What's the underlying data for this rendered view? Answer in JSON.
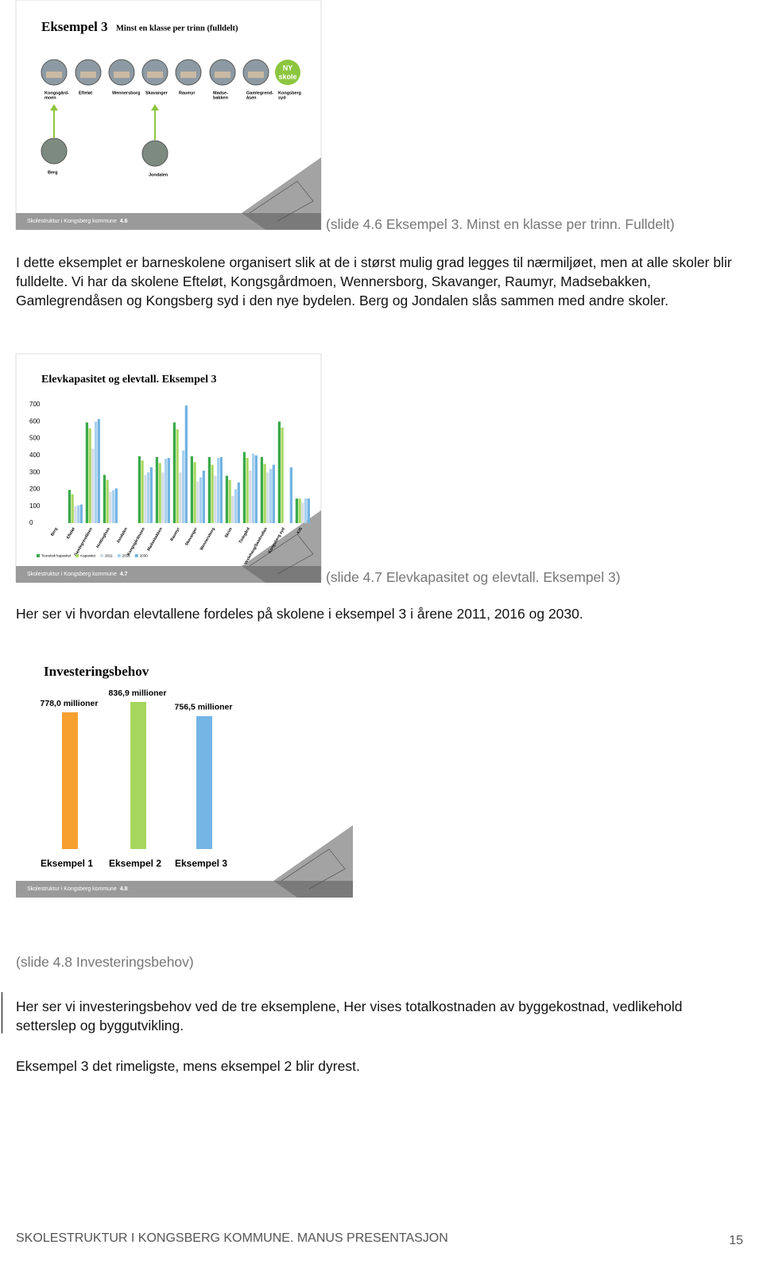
{
  "slides": [
    {
      "title": "Eksempel 3",
      "subtitle": "Minst en klasse per trinn (fulldelt)",
      "schools": [
        [
          "Kongsgård-",
          "moen"
        ],
        [
          "Efteløt"
        ],
        [
          "Wennersborg"
        ],
        [
          "Skavanger"
        ],
        [
          "Raumyr"
        ],
        [
          "Madse-",
          "bakken"
        ],
        [
          "Gamlegrend-",
          "åsen"
        ],
        [
          "Kongsberg",
          "syd"
        ]
      ],
      "new_school": [
        "NY",
        "skole"
      ],
      "merged": [
        "Berg",
        "Jondalen"
      ],
      "footer": "Skolestruktur i Kongsberg kommune",
      "number": "4.6",
      "caption": "(slide 4.6 Eksempel 3. Minst en klasse per trinn. Fulldelt)"
    },
    {
      "chart_data": {
        "type": "bar",
        "title": "Elevkapasitet og elevtall. Eksempel 3",
        "categories": [
          "Berg",
          "Efteløt",
          "Gamlegrendåsen",
          "Hvittingfoss",
          "Jondalen",
          "Kongsgårdmoen",
          "Madsebakken",
          "Raumyr",
          "Skavanger",
          "Wennersborg",
          "Skrim",
          "Tislegård",
          "Veslehaug/Sandvollan",
          "Kongsberg syd",
          "KIS"
        ],
        "series": [
          {
            "name": "Teoretisk kapasitet",
            "color": "#3aaa4a",
            "values": [
              null,
              196,
              595,
              285,
              null,
              395,
              390,
              595,
              395,
              390,
              280,
              420,
              390,
              600,
              145
            ]
          },
          {
            "name": "Kapasitet",
            "color": "#a8d862",
            "values": [
              null,
              170,
              560,
              255,
              null,
              370,
              355,
              555,
              360,
              345,
              255,
              385,
              350,
              565,
              145
            ]
          },
          {
            "name": "2011",
            "color": "#d3dbe3",
            "values": [
              null,
              100,
              440,
              185,
              null,
              285,
              300,
              300,
              245,
              280,
              160,
              310,
              300,
              null,
              120
            ]
          },
          {
            "name": "2016",
            "color": "#a9d1ef",
            "values": [
              null,
              105,
              600,
              195,
              null,
              300,
              380,
              430,
              270,
              385,
              200,
              410,
              320,
              null,
              145
            ]
          },
          {
            "name": "2030",
            "color": "#72b3e2",
            "values": [
              null,
              110,
              615,
              205,
              null,
              330,
              385,
              695,
              310,
              390,
              240,
              400,
              345,
              330,
              145
            ]
          }
        ],
        "ylim": [
          0,
          700
        ],
        "yticks": [
          0,
          100,
          200,
          300,
          400,
          500,
          600,
          700
        ],
        "legend": "bottom"
      },
      "footer": "Skolestruktur i Kongsberg kommune",
      "number": "4.7",
      "caption": "(slide 4.7 Elevkapasitet og elevtall. Eksempel 3)"
    },
    {
      "chart_data": {
        "type": "bar",
        "title": "Investeringsbehov",
        "categories": [
          "Eksempel 1",
          "Eksempel 2",
          "Eksempel 3"
        ],
        "values": [
          778.0,
          836.9,
          756.5
        ],
        "value_labels": [
          "778,0 millioner",
          "836,9 millioner",
          "756,5 millioner"
        ],
        "colors": [
          "#f7a030",
          "#a6d65e",
          "#74b5e6"
        ]
      },
      "footer": "Skolestruktur i Kongsberg kommune",
      "number": "4.8",
      "caption": "(slide 4.8 Investeringsbehov)"
    }
  ],
  "paragraphs": [
    "I dette eksemplet er barneskolene organisert slik at de i størst mulig grad legges til nærmiljøet, men at alle skoler blir fulldelte. Vi har da skolene Efteløt, Kongsgårdmoen, Wennersborg, Skavanger, Raumyr, Madsebakken, Gamlegrendåsen og Kongsberg syd i den nye bydelen. Berg og Jondalen slås sammen med andre skoler.",
    "Her ser vi hvordan elevtallene fordeles på skolene i eksempel 3 i årene 2011, 2016 og 2030.",
    "Her ser vi investeringsbehov ved de tre eksemplene, Her vises totalkostnaden av byggekostnad, vedlikehold setterslep og byggutvikling.",
    "Eksempel 3 det rimeligste, mens eksempel 2 blir dyrest."
  ],
  "footer": {
    "text": "SKOLESTRUKTUR I KONGSBERG KOMMUNE. MANUS PRESENTASJON",
    "page": "15"
  }
}
